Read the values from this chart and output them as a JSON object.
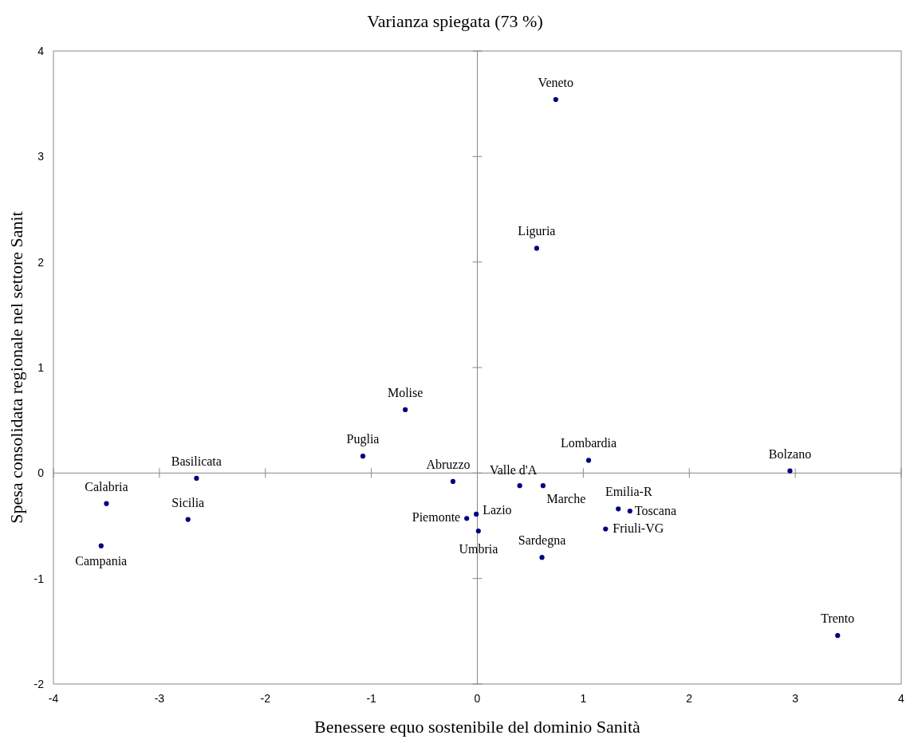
{
  "chart_data": {
    "type": "scatter",
    "title": "Varianza spiegata (73 %)",
    "xlabel": "Benessere equo sostenibile del dominio Sanità",
    "ylabel": "Spesa consolidata regionale nel settore Sanit",
    "xlim": [
      -4,
      4
    ],
    "ylim": [
      -2,
      4
    ],
    "xticks": [
      -4,
      -3,
      -2,
      -1,
      0,
      1,
      2,
      3,
      4
    ],
    "yticks": [
      -2,
      -1,
      0,
      1,
      2,
      3,
      4
    ],
    "marker": "circle",
    "series": [
      {
        "color": "#000080",
        "x": [
          0.74,
          0.56,
          -0.68,
          -1.08,
          -2.65,
          -3.5,
          -3.55,
          -2.73,
          -0.23,
          0.4,
          0.62,
          1.05,
          2.95,
          -0.01,
          -0.1,
          0.01,
          1.33,
          1.44,
          1.21,
          0.61,
          3.4
        ],
        "values": [
          3.54,
          2.13,
          0.6,
          0.16,
          -0.05,
          -0.29,
          -0.69,
          -0.44,
          -0.08,
          -0.12,
          -0.12,
          0.12,
          0.02,
          -0.39,
          -0.43,
          -0.55,
          -0.34,
          -0.36,
          -0.53,
          -0.8,
          -1.54
        ]
      }
    ],
    "annotations": [
      {
        "text": "Veneto",
        "x": 0.74,
        "y": 3.54
      },
      {
        "text": "Liguria",
        "x": 0.56,
        "y": 2.13
      },
      {
        "text": "Molise",
        "x": -0.68,
        "y": 0.6
      },
      {
        "text": "Puglia",
        "x": -1.08,
        "y": 0.16
      },
      {
        "text": "Basilicata",
        "x": -2.65,
        "y": -0.05
      },
      {
        "text": "Calabria",
        "x": -3.5,
        "y": -0.29
      },
      {
        "text": "Campania",
        "x": -3.55,
        "y": -0.69
      },
      {
        "text": "Sicilia",
        "x": -2.73,
        "y": -0.44
      },
      {
        "text": "Abruzzo",
        "x": -0.23,
        "y": -0.08
      },
      {
        "text": "Valle d'A",
        "x": 0.4,
        "y": -0.12
      },
      {
        "text": "Marche",
        "x": 0.62,
        "y": -0.12
      },
      {
        "text": "Lombardia",
        "x": 1.05,
        "y": 0.12
      },
      {
        "text": "Bolzano",
        "x": 2.95,
        "y": 0.02
      },
      {
        "text": "Lazio",
        "x": -0.01,
        "y": -0.39
      },
      {
        "text": "Piemonte",
        "x": -0.1,
        "y": -0.43
      },
      {
        "text": "Umbria",
        "x": 0.01,
        "y": -0.55
      },
      {
        "text": "Emilia-R",
        "x": 1.33,
        "y": -0.34
      },
      {
        "text": "Toscana",
        "x": 1.44,
        "y": -0.36
      },
      {
        "text": "Friuli-VG",
        "x": 1.21,
        "y": -0.53
      },
      {
        "text": "Sardegna",
        "x": 0.61,
        "y": -0.8
      },
      {
        "text": "Trento",
        "x": 3.4,
        "y": -1.54
      }
    ]
  }
}
